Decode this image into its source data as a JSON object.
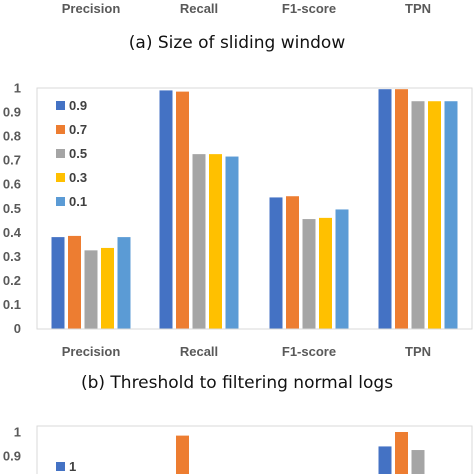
{
  "chart_data": [
    {
      "type": "bar",
      "caption": "(a) Size of sliding window",
      "categories": [
        "Precision",
        "Recall",
        "F1-score",
        "TPN"
      ]
    },
    {
      "type": "bar",
      "caption": "(b) Threshold to filtering normal logs",
      "categories": [
        "Precision",
        "Recall",
        "F1-score",
        "TPN"
      ],
      "ylim": [
        0,
        1
      ],
      "yticks": [
        "0",
        "0.1",
        "0.2",
        "0.3",
        "0.4",
        "0.5",
        "0.6",
        "0.7",
        "0.8",
        "0.9",
        "1"
      ],
      "legend_position": "top-left",
      "series": [
        {
          "name": "0.9",
          "color": "#4472C4",
          "values": [
            0.38,
            0.99,
            0.545,
            0.995
          ]
        },
        {
          "name": "0.7",
          "color": "#ED7D31",
          "values": [
            0.385,
            0.985,
            0.55,
            0.995
          ]
        },
        {
          "name": "0.5",
          "color": "#A5A5A5",
          "values": [
            0.325,
            0.725,
            0.455,
            0.945
          ]
        },
        {
          "name": "0.3",
          "color": "#FFC000",
          "values": [
            0.335,
            0.725,
            0.46,
            0.945
          ]
        },
        {
          "name": "0.1",
          "color": "#5B9BD5",
          "values": [
            0.38,
            0.715,
            0.495,
            0.945
          ]
        }
      ]
    },
    {
      "type": "bar",
      "ylim": [
        0,
        1
      ],
      "yticks": [
        "0.9",
        "1"
      ],
      "legend_position": "top-left",
      "series": [
        {
          "name": "1",
          "color": "#4472C4",
          "values": [
            null,
            null,
            null,
            0.94
          ]
        },
        {
          "name": "",
          "color": "#ED7D31",
          "values": [
            null,
            0.985,
            null,
            1.0
          ]
        },
        {
          "name": "",
          "color": "#A5A5A5",
          "values": [
            null,
            null,
            null,
            0.925
          ]
        }
      ]
    }
  ]
}
